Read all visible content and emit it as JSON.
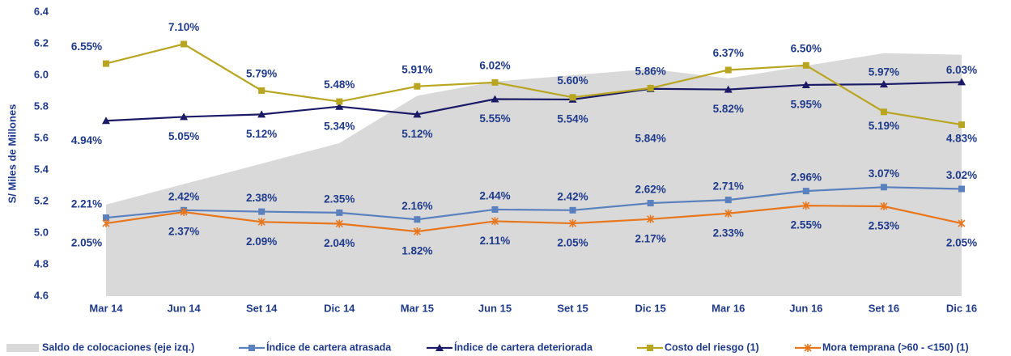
{
  "chart_data": {
    "type": "line",
    "ylabel": "S/  Miles de Millones",
    "categories": [
      "Mar 14",
      "Jun 14",
      "Set 14",
      "Dic 14",
      "Mar 15",
      "Jun 15",
      "Set 15",
      "Dic 15",
      "Mar 16",
      "Jun 16",
      "Set 16",
      "Dic 16"
    ],
    "ylim": [
      4.6,
      6.4
    ],
    "yticks": [
      4.6,
      4.8,
      {
        "value": 5,
        "label": "5.0"
      },
      5.2,
      5.4,
      5.6,
      5.8,
      {
        "value": 6,
        "label": "6.0"
      },
      6.2,
      6.4
    ],
    "y2lim": [
      0,
      8
    ],
    "series": [
      {
        "name": "Saldo de colocaciones (eje izq.)",
        "kind": "area",
        "color": "#d9d9d9",
        "values": [
          5.18,
          5.31,
          5.44,
          5.57,
          5.87,
          5.96,
          6.0,
          6.04,
          5.98,
          6.06,
          6.14,
          6.13
        ]
      },
      {
        "name": "Índice de cartera atrasada",
        "axis": "y2",
        "color": "#5b80be",
        "marker": "square",
        "values": [
          2.21,
          2.42,
          2.38,
          2.35,
          2.16,
          2.44,
          2.42,
          2.62,
          2.71,
          2.96,
          3.07,
          3.02
        ],
        "value_labels": [
          "2.21%",
          "2.42%",
          "2.38%",
          "2.35%",
          "2.16%",
          "2.44%",
          "2.42%",
          "2.62%",
          "2.71%",
          "2.96%",
          "3.07%",
          "3.02%"
        ]
      },
      {
        "name": "Índice de cartera deteriorada",
        "axis": "y2",
        "color": "#1a1a66",
        "marker": "triangle",
        "values": [
          4.94,
          5.05,
          5.12,
          5.34,
          5.12,
          5.55,
          5.54,
          5.84,
          5.82,
          5.95,
          5.97,
          6.03
        ],
        "value_labels": [
          "4.94%",
          "5.05%",
          "5.12%",
          "5.34%",
          "5.12%",
          "5.55%",
          "5.54%",
          "5.84%",
          "5.82%",
          "5.95%",
          "5.97%",
          "6.03%"
        ]
      },
      {
        "name": "Costo del riesgo (1)",
        "axis": "y2",
        "color": "#b8a520",
        "marker": "square",
        "values": [
          6.55,
          7.1,
          5.79,
          5.48,
          5.91,
          6.02,
          5.6,
          5.86,
          6.37,
          6.5,
          5.19,
          4.83
        ],
        "value_labels": [
          "6.55%",
          "7.10%",
          "5.79%",
          "5.48%",
          "5.91%",
          "6.02%",
          "5.60%",
          "5.86%",
          "6.37%",
          "6.50%",
          "5.19%",
          "4.83%"
        ]
      },
      {
        "name": "Mora temprana (>60 - <150) (1)",
        "axis": "y2",
        "color": "#e8761c",
        "marker": "star",
        "values": [
          2.05,
          2.37,
          2.09,
          2.04,
          1.82,
          2.11,
          2.05,
          2.17,
          2.33,
          2.55,
          2.53,
          2.05
        ],
        "value_labels": [
          "2.05%",
          "2.37%",
          "2.09%",
          "2.04%",
          "1.82%",
          "2.11%",
          "2.05%",
          "2.17%",
          "2.33%",
          "2.55%",
          "2.53%",
          "2.05%"
        ]
      }
    ]
  }
}
